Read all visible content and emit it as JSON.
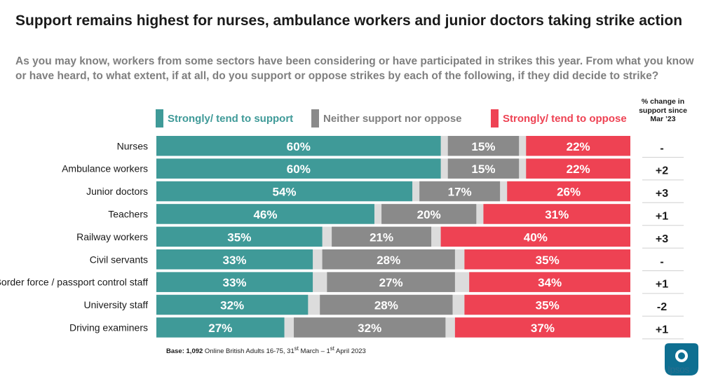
{
  "title": "Support remains highest for nurses, ambulance workers and junior doctors taking strike action",
  "subtitle": "As you may know, workers from some sectors have been considering or have participated in strikes this year.  From what you know or have heard, to what extent, if at all, do you support or oppose strikes by each of the following, if they did decide to strike?",
  "change_header": "% change in support since Mar ’23",
  "base_note": {
    "label": "Base:",
    "count": "1,092",
    "text_a": " Online British Adults 16-75, 31",
    "sup_a": "st",
    "text_b": " March – 1",
    "sup_b": "st",
    "text_c": " April 2023"
  },
  "logo_text": "Ipsos",
  "colors": {
    "support": "#3f9a98",
    "neither": "#8a8a8a",
    "oppose": "#ee4253",
    "gap": "#dcdcdc",
    "row_divider": "#d0d0d0"
  },
  "chart_data": {
    "type": "bar",
    "orientation": "horizontal-stacked-100",
    "categories": [
      "Nurses",
      "Ambulance workers",
      "Junior doctors",
      "Teachers",
      "Railway workers",
      "Civil servants",
      "Border force / passport control staff",
      "University staff",
      "Driving examiners"
    ],
    "series": [
      {
        "name": "Strongly/ tend to support",
        "color": "#3f9a98",
        "values": [
          60,
          60,
          54,
          46,
          35,
          33,
          33,
          32,
          27
        ]
      },
      {
        "name": "Neither support nor oppose",
        "color": "#8a8a8a",
        "values": [
          15,
          15,
          17,
          20,
          21,
          28,
          27,
          28,
          32
        ]
      },
      {
        "name": "Strongly/ tend to oppose",
        "color": "#ee4253",
        "values": [
          22,
          22,
          26,
          31,
          40,
          35,
          34,
          35,
          37
        ]
      }
    ],
    "change_since_mar23": [
      "-",
      "+2",
      "+3",
      "+1",
      "+3",
      "-",
      "+1",
      "-2",
      "+1"
    ],
    "xlim": [
      0,
      100
    ],
    "legend": "top"
  }
}
